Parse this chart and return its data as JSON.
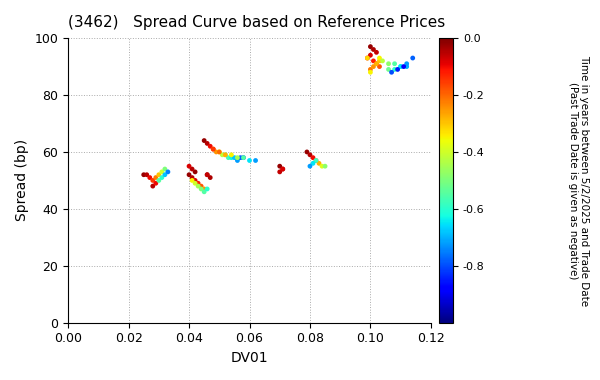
{
  "title": "(3462)   Spread Curve based on Reference Prices",
  "xlabel": "DV01",
  "ylabel": "Spread (bp)",
  "xlim": [
    0.0,
    0.12
  ],
  "ylim": [
    0,
    100
  ],
  "xticks": [
    0.0,
    0.02,
    0.04,
    0.06,
    0.08,
    0.1,
    0.12
  ],
  "yticks": [
    0,
    20,
    40,
    60,
    80,
    100
  ],
  "colorbar_label": "Time in years between 5/2/2025 and Trade Date\n(Past Trade Date is given as negative)",
  "colorbar_vmin": -1.0,
  "colorbar_vmax": 0.0,
  "colorbar_ticks": [
    0.0,
    -0.2,
    -0.4,
    -0.6,
    -0.8
  ],
  "clusters": [
    {
      "dv01": [
        0.025,
        0.026,
        0.027,
        0.028,
        0.029,
        0.03,
        0.031,
        0.032,
        0.028,
        0.029,
        0.03,
        0.031,
        0.032,
        0.033
      ],
      "spread": [
        52,
        52,
        51,
        50,
        51,
        52,
        53,
        54,
        48,
        49,
        50,
        51,
        52,
        53
      ],
      "time": [
        -0.02,
        -0.05,
        -0.1,
        -0.15,
        -0.22,
        -0.3,
        -0.4,
        -0.5,
        -0.05,
        -0.1,
        -0.55,
        -0.6,
        -0.68,
        -0.75
      ]
    },
    {
      "dv01": [
        0.04,
        0.041,
        0.042,
        0.043,
        0.044,
        0.045,
        0.042,
        0.041,
        0.04,
        0.041,
        0.042,
        0.043,
        0.044,
        0.045,
        0.046
      ],
      "spread": [
        52,
        51,
        50,
        49,
        48,
        47,
        53,
        54,
        55,
        50,
        49,
        48,
        47,
        46,
        47
      ],
      "time": [
        -0.02,
        -0.05,
        -0.08,
        -0.12,
        -0.18,
        -0.25,
        -0.02,
        -0.05,
        -0.08,
        -0.35,
        -0.4,
        -0.45,
        -0.5,
        -0.55,
        -0.6
      ]
    },
    {
      "dv01": [
        0.046,
        0.047,
        0.046
      ],
      "spread": [
        52,
        51,
        52
      ],
      "time": [
        -0.02,
        -0.04,
        -0.06
      ]
    },
    {
      "dv01": [
        0.045,
        0.046,
        0.047,
        0.048,
        0.049,
        0.05,
        0.051,
        0.052,
        0.053,
        0.054,
        0.055,
        0.056,
        0.057,
        0.058
      ],
      "spread": [
        64,
        63,
        62,
        61,
        60,
        60,
        59,
        59,
        58,
        58,
        58,
        57,
        58,
        58
      ],
      "time": [
        -0.02,
        -0.05,
        -0.1,
        -0.18,
        -0.25,
        -0.35,
        -0.42,
        -0.5,
        -0.57,
        -0.63,
        -0.68,
        -0.72,
        -0.78,
        -0.82
      ]
    },
    {
      "dv01": [
        0.048,
        0.05,
        0.052,
        0.054,
        0.056,
        0.058,
        0.06,
        0.062
      ],
      "spread": [
        61,
        60,
        59,
        59,
        58,
        58,
        57,
        57
      ],
      "time": [
        -0.15,
        -0.2,
        -0.28,
        -0.35,
        -0.45,
        -0.55,
        -0.65,
        -0.72
      ]
    },
    {
      "dv01": [
        0.07,
        0.071,
        0.07,
        0.071
      ],
      "spread": [
        55,
        54,
        53,
        54
      ],
      "time": [
        -0.02,
        -0.04,
        -0.06,
        -0.08
      ]
    },
    {
      "dv01": [
        0.079,
        0.08,
        0.081,
        0.082,
        0.083,
        0.084,
        0.085,
        0.082,
        0.081,
        0.08
      ],
      "spread": [
        60,
        59,
        58,
        57,
        56,
        55,
        55,
        57,
        56,
        55
      ],
      "time": [
        -0.02,
        -0.05,
        -0.1,
        -0.18,
        -0.28,
        -0.38,
        -0.48,
        -0.58,
        -0.65,
        -0.72
      ]
    },
    {
      "dv01": [
        0.1,
        0.101,
        0.102,
        0.1,
        0.099,
        0.101,
        0.102,
        0.103,
        0.1,
        0.101,
        0.102,
        0.103,
        0.099,
        0.1
      ],
      "spread": [
        97,
        96,
        95,
        94,
        93,
        92,
        91,
        90,
        89,
        90,
        91,
        92,
        93,
        88
      ],
      "time": [
        -0.02,
        -0.04,
        -0.06,
        -0.08,
        -0.1,
        -0.12,
        -0.15,
        -0.18,
        -0.22,
        -0.25,
        -0.28,
        -0.3,
        -0.32,
        -0.35
      ]
    },
    {
      "dv01": [
        0.103,
        0.104,
        0.106,
        0.108,
        0.11,
        0.112,
        0.114,
        0.106,
        0.108,
        0.11,
        0.112,
        0.107,
        0.109,
        0.111
      ],
      "spread": [
        93,
        92,
        91,
        91,
        90,
        90,
        93,
        89,
        89,
        90,
        91,
        88,
        89,
        90
      ],
      "time": [
        -0.35,
        -0.42,
        -0.48,
        -0.55,
        -0.62,
        -0.7,
        -0.78,
        -0.52,
        -0.6,
        -0.65,
        -0.72,
        -0.8,
        -0.85,
        -0.88
      ]
    }
  ],
  "scatter_size": 12,
  "background_color": "#ffffff",
  "grid_color": "#aaaaaa",
  "grid_style": ":"
}
